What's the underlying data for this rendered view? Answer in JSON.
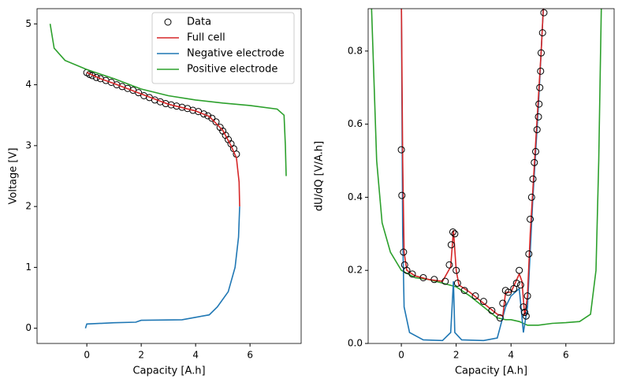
{
  "chart_data": [
    {
      "type": "line",
      "xlabel": "Capacity [A.h]",
      "ylabel": "Voltage [V]",
      "xlim": [
        -1.83,
        7.88
      ],
      "ylim": [
        -0.25,
        5.25
      ],
      "xticks": [
        0,
        2,
        4,
        6
      ],
      "yticks": [
        0,
        1,
        2,
        3,
        4,
        5
      ],
      "legend": "upper right",
      "series": [
        {
          "name": "Data",
          "color": "#000000",
          "style": "markers",
          "x": [
            0,
            0.1,
            0.2,
            0.35,
            0.5,
            0.7,
            0.9,
            1.1,
            1.3,
            1.5,
            1.7,
            1.9,
            2.1,
            2.3,
            2.5,
            2.7,
            2.9,
            3.1,
            3.3,
            3.5,
            3.7,
            3.9,
            4.1,
            4.3,
            4.45,
            4.6,
            4.75,
            4.9,
            5.0,
            5.1,
            5.2,
            5.3,
            5.4,
            5.5
          ],
          "y": [
            4.2,
            4.17,
            4.15,
            4.12,
            4.1,
            4.07,
            4.04,
            4.0,
            3.97,
            3.94,
            3.91,
            3.87,
            3.82,
            3.79,
            3.75,
            3.72,
            3.69,
            3.67,
            3.65,
            3.63,
            3.61,
            3.58,
            3.56,
            3.52,
            3.49,
            3.45,
            3.39,
            3.3,
            3.24,
            3.17,
            3.1,
            3.03,
            2.95,
            2.86
          ]
        },
        {
          "name": "Full cell",
          "color": "#d62728",
          "style": "line",
          "x": [
            0,
            0.5,
            1,
            2,
            3,
            4,
            4.5,
            5,
            5.3,
            5.5,
            5.6,
            5.62
          ],
          "y": [
            4.2,
            4.1,
            4.02,
            3.85,
            3.68,
            3.57,
            3.48,
            3.25,
            3.0,
            2.8,
            2.4,
            2.0
          ]
        },
        {
          "name": "Negative electrode",
          "color": "#1f77b4",
          "style": "line",
          "x": [
            -0.05,
            0,
            1,
            1.8,
            2,
            3.5,
            4,
            4.5,
            4.8,
            5.2,
            5.45,
            5.58,
            5.62
          ],
          "y": [
            0.0,
            0.07,
            0.09,
            0.1,
            0.13,
            0.14,
            0.18,
            0.22,
            0.35,
            0.6,
            1.0,
            1.5,
            2.0
          ]
        },
        {
          "name": "Positive electrode",
          "color": "#2ca02c",
          "style": "line",
          "x": [
            -1.35,
            -1.2,
            -0.8,
            0,
            1,
            2,
            3,
            4,
            5,
            6,
            7,
            7.25,
            7.3,
            7.33
          ],
          "y": [
            5.0,
            4.6,
            4.4,
            4.25,
            4.1,
            3.93,
            3.82,
            3.75,
            3.7,
            3.66,
            3.6,
            3.5,
            3.0,
            2.5
          ]
        }
      ]
    },
    {
      "type": "line",
      "xlabel": "Capacity [A.h]",
      "ylabel": "dU/dQ [V/A.h]",
      "xlim": [
        -1.21,
        7.76
      ],
      "ylim": [
        0,
        0.916
      ],
      "xticks": [
        0,
        2,
        4,
        6
      ],
      "yticks": [
        {
          "value": 0,
          "label": "0.0"
        },
        {
          "value": 0.2,
          "label": "0.2"
        },
        {
          "value": 0.4,
          "label": "0.4"
        },
        {
          "value": 0.6,
          "label": "0.6"
        },
        {
          "value": 0.8,
          "label": "0.8"
        }
      ],
      "series": [
        {
          "color": "#2ca02c",
          "style": "line",
          "x": [
            -1.1,
            -0.9,
            -0.7,
            -0.4,
            0,
            0.5,
            1,
            1.5,
            2,
            2.5,
            3,
            3.5,
            3.8,
            4,
            4.3,
            4.6,
            5,
            5.5,
            6,
            6.5,
            6.9,
            7.1,
            7.2,
            7.3
          ],
          "y": [
            0.95,
            0.5,
            0.33,
            0.25,
            0.2,
            0.18,
            0.175,
            0.165,
            0.155,
            0.13,
            0.1,
            0.07,
            0.065,
            0.065,
            0.06,
            0.05,
            0.05,
            0.055,
            0.057,
            0.06,
            0.08,
            0.2,
            0.5,
            0.95
          ]
        },
        {
          "color": "#1f77b4",
          "style": "line",
          "x": [
            0,
            0.05,
            0.1,
            0.3,
            0.8,
            1.5,
            1.8,
            1.9,
            1.95,
            2.2,
            3,
            3.5,
            3.8,
            4,
            4.3,
            4.45,
            4.6,
            4.8,
            5.0,
            5.2
          ],
          "y": [
            0.95,
            0.3,
            0.1,
            0.03,
            0.01,
            0.008,
            0.03,
            0.17,
            0.03,
            0.01,
            0.008,
            0.015,
            0.1,
            0.13,
            0.15,
            0.03,
            0.1,
            0.4,
            0.65,
            0.95
          ]
        },
        {
          "color": "#d62728",
          "style": "line",
          "x": [
            0,
            0.05,
            0.1,
            0.2,
            0.5,
            1,
            1.5,
            1.8,
            1.9,
            2.0,
            2.1,
            2.5,
            3,
            3.5,
            3.7,
            3.8,
            4,
            4.3,
            4.4,
            4.5,
            4.6,
            4.7,
            4.9,
            5.1,
            5.2
          ],
          "y": [
            0.95,
            0.5,
            0.25,
            0.2,
            0.185,
            0.175,
            0.17,
            0.21,
            0.31,
            0.2,
            0.16,
            0.14,
            0.11,
            0.08,
            0.075,
            0.14,
            0.14,
            0.19,
            0.17,
            0.075,
            0.13,
            0.3,
            0.55,
            0.8,
            0.95
          ]
        },
        {
          "color": "#000000",
          "style": "markers",
          "x": [
            0,
            0.02,
            0.08,
            0.12,
            0.2,
            0.4,
            0.8,
            1.2,
            1.6,
            1.75,
            1.82,
            1.88,
            1.95,
            2.0,
            2.05,
            2.3,
            2.7,
            3.0,
            3.3,
            3.6,
            3.7,
            3.8,
            3.9,
            4.1,
            4.2,
            4.3,
            4.35,
            4.45,
            4.5,
            4.55,
            4.6,
            4.65,
            4.7,
            4.75,
            4.8,
            4.85,
            4.9,
            4.95,
            5.0,
            5.02,
            5.05,
            5.08,
            5.1,
            5.15,
            5.2
          ],
          "y": [
            0.53,
            0.405,
            0.25,
            0.215,
            0.2,
            0.19,
            0.18,
            0.175,
            0.17,
            0.215,
            0.27,
            0.305,
            0.3,
            0.2,
            0.165,
            0.145,
            0.13,
            0.115,
            0.09,
            0.07,
            0.11,
            0.145,
            0.14,
            0.15,
            0.165,
            0.2,
            0.16,
            0.1,
            0.085,
            0.075,
            0.13,
            0.245,
            0.34,
            0.4,
            0.45,
            0.495,
            0.525,
            0.585,
            0.62,
            0.655,
            0.7,
            0.745,
            0.795,
            0.85,
            0.905
          ]
        }
      ]
    }
  ]
}
